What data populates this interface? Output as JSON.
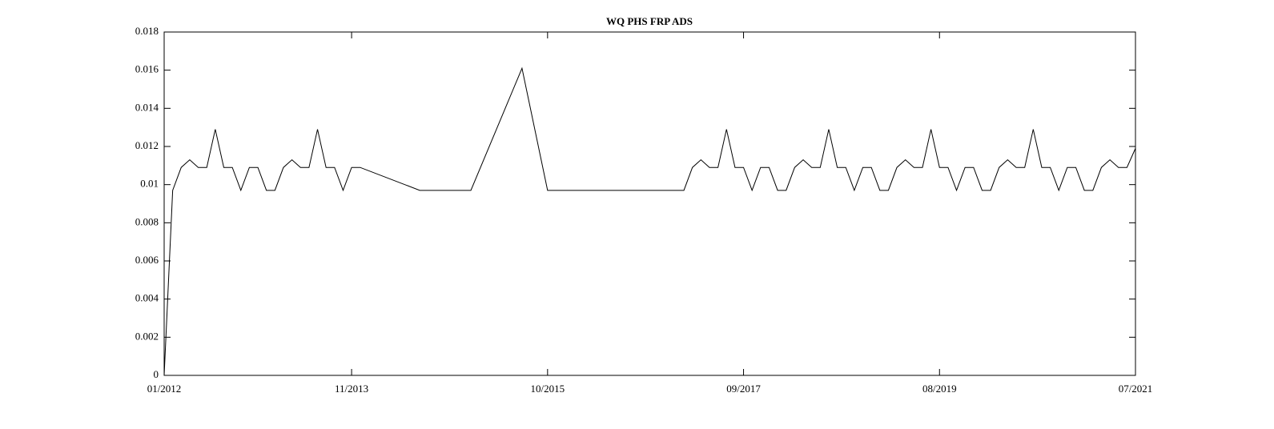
{
  "chart_data": {
    "type": "line",
    "title": "WQ PHS FRP ADS",
    "x": [
      "01/2012",
      "02/2012",
      "03/2012",
      "04/2012",
      "05/2012",
      "06/2012",
      "07/2012",
      "08/2012",
      "09/2012",
      "10/2012",
      "11/2012",
      "12/2012",
      "01/2013",
      "02/2013",
      "03/2013",
      "04/2013",
      "05/2013",
      "06/2013",
      "07/2013",
      "08/2013",
      "09/2013",
      "10/2013",
      "11/2013",
      "12/2013",
      "07/2014",
      "01/2015",
      "04/2015",
      "07/2015",
      "10/2015",
      "02/2017",
      "03/2017",
      "04/2017",
      "05/2017",
      "06/2017",
      "07/2017",
      "08/2017",
      "09/2017",
      "10/2017",
      "11/2017",
      "12/2017",
      "01/2018",
      "02/2018",
      "03/2018",
      "04/2018",
      "05/2018",
      "06/2018",
      "07/2018",
      "08/2018",
      "09/2018",
      "10/2018",
      "11/2018",
      "12/2018",
      "01/2019",
      "02/2019",
      "03/2019",
      "04/2019",
      "05/2019",
      "06/2019",
      "07/2019",
      "08/2019",
      "09/2019",
      "10/2019",
      "11/2019",
      "12/2019",
      "01/2020",
      "02/2020",
      "03/2020",
      "04/2020",
      "05/2020",
      "06/2020",
      "07/2020",
      "08/2020",
      "09/2020",
      "10/2020",
      "11/2020",
      "12/2020",
      "01/2021",
      "02/2021",
      "03/2021",
      "04/2021",
      "05/2021",
      "06/2021",
      "07/2021"
    ],
    "values": [
      0,
      0.0097,
      0.0109,
      0.0113,
      0.0109,
      0.0109,
      0.0129,
      0.0109,
      0.0109,
      0.0097,
      0.0109,
      0.0109,
      0.0097,
      0.0097,
      0.0109,
      0.0113,
      0.0109,
      0.0109,
      0.0129,
      0.0109,
      0.0109,
      0.0097,
      0.0109,
      0.0109,
      0.0097,
      0.0097,
      0.0129,
      0.0161,
      0.0097,
      0.0097,
      0.0109,
      0.0113,
      0.0109,
      0.0109,
      0.0129,
      0.0109,
      0.0109,
      0.0097,
      0.0109,
      0.0109,
      0.0097,
      0.0097,
      0.0109,
      0.0113,
      0.0109,
      0.0109,
      0.0129,
      0.0109,
      0.0109,
      0.0097,
      0.0109,
      0.0109,
      0.0097,
      0.0097,
      0.0109,
      0.0113,
      0.0109,
      0.0109,
      0.0129,
      0.0109,
      0.0109,
      0.0097,
      0.0109,
      0.0109,
      0.0097,
      0.0097,
      0.0109,
      0.0113,
      0.0109,
      0.0109,
      0.0129,
      0.0109,
      0.0109,
      0.0097,
      0.0109,
      0.0109,
      0.0097,
      0.0097,
      0.0109,
      0.0113,
      0.0109,
      0.0109,
      0.0119
    ],
    "color": "#000000",
    "xlim": [
      "01/2012",
      "07/2021"
    ],
    "xticks": [
      "01/2012",
      "11/2013",
      "10/2015",
      "09/2017",
      "08/2019",
      "07/2021"
    ],
    "ylim": [
      0,
      0.018
    ],
    "yticks": [
      0,
      0.002,
      0.004,
      0.006,
      0.008,
      0.01,
      0.012,
      0.014,
      0.016,
      0.018
    ]
  }
}
